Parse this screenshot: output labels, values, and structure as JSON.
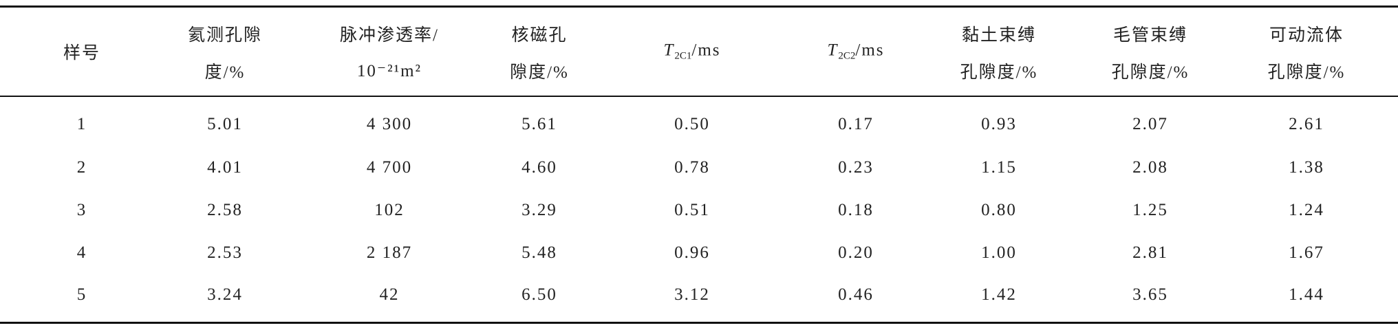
{
  "table": {
    "header": [
      {
        "lines": [
          "样号"
        ]
      },
      {
        "lines": [
          "氦测孔隙",
          "度/%"
        ]
      },
      {
        "lines": [
          "脉冲渗透率/",
          "10⁻²¹m²"
        ]
      },
      {
        "lines": [
          "核磁孔",
          "隙度/%"
        ]
      },
      {
        "symbol": "T",
        "subscript": "2C1",
        "unit": "/ms"
      },
      {
        "symbol": "T",
        "subscript": "2C2",
        "unit": "/ms"
      },
      {
        "lines": [
          "黏土束缚",
          "孔隙度/%"
        ]
      },
      {
        "lines": [
          "毛管束缚",
          "孔隙度/%"
        ]
      },
      {
        "lines": [
          "可动流体",
          "孔隙度/%"
        ]
      }
    ],
    "rows": [
      [
        "1",
        "5.01",
        "4 300",
        "5.61",
        "0.50",
        "0.17",
        "0.93",
        "2.07",
        "2.61"
      ],
      [
        "2",
        "4.01",
        "4 700",
        "4.60",
        "0.78",
        "0.23",
        "1.15",
        "2.08",
        "1.38"
      ],
      [
        "3",
        "2.58",
        "102",
        "3.29",
        "0.51",
        "0.18",
        "0.80",
        "1.25",
        "1.24"
      ],
      [
        "4",
        "2.53",
        "2 187",
        "5.48",
        "0.96",
        "0.20",
        "1.00",
        "2.81",
        "1.67"
      ],
      [
        "5",
        "3.24",
        "42",
        "6.50",
        "3.12",
        "0.46",
        "1.42",
        "3.65",
        "1.44"
      ]
    ]
  }
}
